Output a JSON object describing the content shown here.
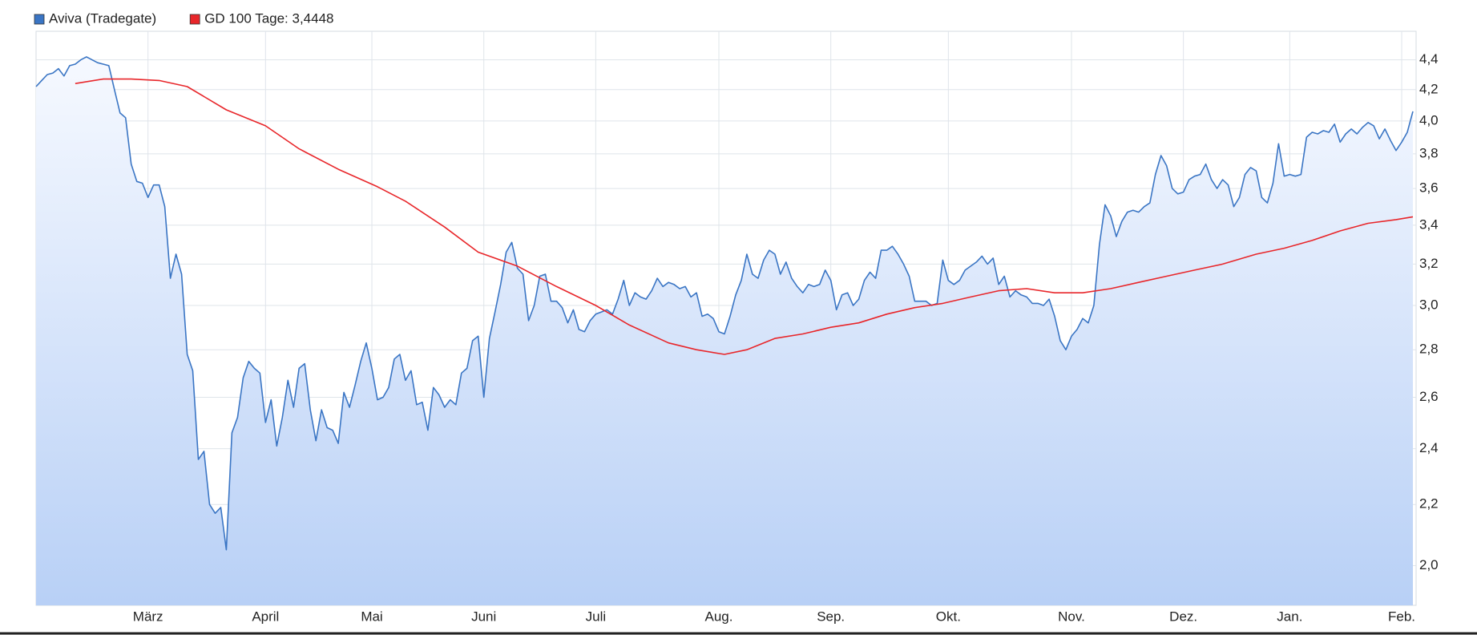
{
  "chart_data": {
    "type": "line",
    "log_y": true,
    "grid": true,
    "xlim": [
      0,
      246
    ],
    "xticks": [
      {
        "value": 20,
        "label": "März"
      },
      {
        "value": 41,
        "label": "April"
      },
      {
        "value": 60,
        "label": "Mai"
      },
      {
        "value": 80,
        "label": "Juni"
      },
      {
        "value": 100,
        "label": "Juli"
      },
      {
        "value": 122,
        "label": "Aug."
      },
      {
        "value": 142,
        "label": "Sep."
      },
      {
        "value": 163,
        "label": "Okt."
      },
      {
        "value": 185,
        "label": "Nov."
      },
      {
        "value": 205,
        "label": "Dez."
      },
      {
        "value": 224,
        "label": "Jan."
      },
      {
        "value": 244,
        "label": "Feb."
      }
    ],
    "ylim": [
      1.88,
      4.6
    ],
    "yticks": [
      {
        "value": 2.0,
        "label": "2,0"
      },
      {
        "value": 2.2,
        "label": "2,2"
      },
      {
        "value": 2.4,
        "label": "2,4"
      },
      {
        "value": 2.6,
        "label": "2,6"
      },
      {
        "value": 2.8,
        "label": "2,8"
      },
      {
        "value": 3.0,
        "label": "3,0"
      },
      {
        "value": 3.2,
        "label": "3,2"
      },
      {
        "value": 3.4,
        "label": "3,4"
      },
      {
        "value": 3.6,
        "label": "3,6"
      },
      {
        "value": 3.8,
        "label": "3,8"
      },
      {
        "value": 4.0,
        "label": "4,0"
      },
      {
        "value": 4.2,
        "label": "4,2"
      },
      {
        "value": 4.4,
        "label": "4,4"
      }
    ],
    "series": [
      {
        "name": "Aviva (Tradegate)",
        "color": "#3a75c4",
        "fill": true,
        "values": [
          4.22,
          4.26,
          4.3,
          4.31,
          4.34,
          4.29,
          4.36,
          4.37,
          4.4,
          4.42,
          4.4,
          4.38,
          4.37,
          4.36,
          4.2,
          4.05,
          4.02,
          3.74,
          3.64,
          3.63,
          3.55,
          3.62,
          3.62,
          3.5,
          3.13,
          3.25,
          3.15,
          2.78,
          2.71,
          2.36,
          2.39,
          2.2,
          2.17,
          2.19,
          2.05,
          2.46,
          2.52,
          2.68,
          2.75,
          2.72,
          2.7,
          2.5,
          2.59,
          2.41,
          2.52,
          2.67,
          2.56,
          2.72,
          2.74,
          2.55,
          2.43,
          2.55,
          2.48,
          2.47,
          2.42,
          2.62,
          2.56,
          2.65,
          2.75,
          2.83,
          2.72,
          2.59,
          2.6,
          2.64,
          2.76,
          2.78,
          2.67,
          2.71,
          2.57,
          2.58,
          2.47,
          2.64,
          2.61,
          2.56,
          2.59,
          2.57,
          2.7,
          2.72,
          2.84,
          2.86,
          2.6,
          2.85,
          2.97,
          3.1,
          3.26,
          3.31,
          3.18,
          3.15,
          2.93,
          3.0,
          3.14,
          3.15,
          3.02,
          3.02,
          2.99,
          2.92,
          2.98,
          2.89,
          2.88,
          2.93,
          2.96,
          2.97,
          2.98,
          2.96,
          3.03,
          3.12,
          3.0,
          3.06,
          3.04,
          3.03,
          3.07,
          3.13,
          3.09,
          3.11,
          3.1,
          3.08,
          3.09,
          3.04,
          3.06,
          2.95,
          2.96,
          2.94,
          2.88,
          2.87,
          2.95,
          3.05,
          3.12,
          3.25,
          3.15,
          3.13,
          3.22,
          3.27,
          3.25,
          3.15,
          3.21,
          3.13,
          3.09,
          3.06,
          3.1,
          3.09,
          3.1,
          3.17,
          3.12,
          2.98,
          3.05,
          3.06,
          3.0,
          3.03,
          3.12,
          3.16,
          3.13,
          3.27,
          3.27,
          3.29,
          3.25,
          3.2,
          3.14,
          3.02,
          3.02,
          3.02,
          3.0,
          3.01,
          3.22,
          3.12,
          3.1,
          3.12,
          3.17,
          3.19,
          3.21,
          3.24,
          3.2,
          3.23,
          3.1,
          3.14,
          3.04,
          3.07,
          3.05,
          3.04,
          3.01,
          3.01,
          3.0,
          3.03,
          2.95,
          2.84,
          2.8,
          2.86,
          2.89,
          2.94,
          2.92,
          3.0,
          3.3,
          3.51,
          3.45,
          3.34,
          3.42,
          3.47,
          3.48,
          3.47,
          3.5,
          3.52,
          3.68,
          3.79,
          3.73,
          3.6,
          3.57,
          3.58,
          3.65,
          3.67,
          3.68,
          3.74,
          3.65,
          3.6,
          3.65,
          3.62,
          3.5,
          3.55,
          3.68,
          3.72,
          3.7,
          3.55,
          3.52,
          3.63,
          3.86,
          3.67,
          3.68,
          3.67,
          3.68,
          3.9,
          3.93,
          3.92,
          3.94,
          3.93,
          3.98,
          3.87,
          3.92,
          3.95,
          3.92,
          3.96,
          3.99,
          3.97,
          3.89,
          3.95,
          3.88,
          3.82,
          3.87,
          3.93,
          4.06
        ]
      },
      {
        "name": "GD 100 Tage: 3,4448",
        "color": "#e8262a",
        "x": [
          7,
          12,
          17,
          22,
          27,
          34,
          41,
          47,
          54,
          61,
          66,
          73,
          79,
          86,
          93,
          100,
          106,
          113,
          118,
          123,
          127,
          132,
          137,
          142,
          147,
          152,
          157,
          162,
          167,
          172,
          177,
          182,
          187,
          192,
          197,
          202,
          207,
          212,
          218,
          223,
          228,
          233,
          238,
          243,
          246
        ],
        "values": [
          4.24,
          4.27,
          4.27,
          4.26,
          4.22,
          4.07,
          3.97,
          3.83,
          3.71,
          3.61,
          3.53,
          3.39,
          3.26,
          3.19,
          3.09,
          3.0,
          2.91,
          2.83,
          2.8,
          2.78,
          2.8,
          2.85,
          2.87,
          2.9,
          2.92,
          2.96,
          2.99,
          3.01,
          3.04,
          3.07,
          3.08,
          3.06,
          3.06,
          3.08,
          3.11,
          3.14,
          3.17,
          3.2,
          3.25,
          3.28,
          3.32,
          3.37,
          3.41,
          3.43,
          3.4448
        ]
      }
    ]
  }
}
